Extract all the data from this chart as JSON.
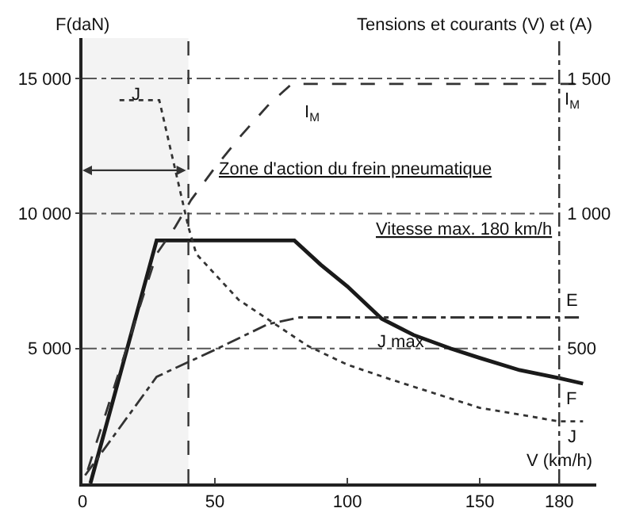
{
  "chart_data": {
    "type": "line",
    "xlabel": "V (km/h)",
    "ylabel": "F(daN)",
    "y2label": "Tensions et courants (V) et (A)",
    "xlim": [
      0,
      194
    ],
    "xticks": [
      0,
      50,
      100,
      150,
      180
    ],
    "ylim": [
      0,
      16500
    ],
    "yticks": [
      {
        "value": 5000,
        "label": "5 000"
      },
      {
        "value": 10000,
        "label": "10 000"
      },
      {
        "value": 15000,
        "label": "15 000"
      }
    ],
    "y2lim": [
      0,
      1650
    ],
    "y2ticks": [
      500,
      {
        "value": 1000,
        "label": "1 000"
      },
      {
        "value": 1500,
        "label": "1 500"
      }
    ],
    "grid": "y",
    "legend": false,
    "marker": "none",
    "series": [
      {
        "name": "F",
        "color": "#1a1a1a",
        "line_style": "solid",
        "x": [
          3,
          28,
          80,
          90,
          100,
          113,
          125,
          139,
          150,
          165,
          180,
          189
        ],
        "values": [
          0,
          9000,
          9000,
          8100,
          7300,
          6100,
          5500,
          5000,
          4650,
          4200,
          3900,
          3700
        ]
      },
      {
        "name": "I$_{M}$",
        "color": "#333333",
        "line_style": "dashed",
        "axis": "y2",
        "x": [
          2,
          15,
          28,
          35,
          41,
          50,
          60,
          70,
          79,
          189
        ],
        "values": [
          50,
          450,
          850,
          950,
          1050,
          1170,
          1290,
          1400,
          1480,
          1480
        ]
      },
      {
        "name": "J",
        "color": "#333333",
        "line_style": "dotted",
        "axis": "y2",
        "x": [
          14,
          29,
          40,
          43,
          59,
          85,
          100,
          115,
          150,
          180,
          189
        ],
        "values": [
          1420,
          1420,
          950,
          850,
          680,
          510,
          440,
          390,
          280,
          230,
          230
        ]
      },
      {
        "name": "E",
        "color": "#333333",
        "line_style": "dashdot",
        "axis": "y2",
        "x": [
          1,
          28,
          40,
          50,
          70,
          82,
          189
        ],
        "values": [
          30,
          395,
          450,
          495,
          590,
          615,
          615
        ]
      }
    ],
    "ref_lines": [
      {
        "axis": "x",
        "value": 40,
        "line_style": "dashed",
        "color": "#333333"
      },
      {
        "axis": "x",
        "value": 180,
        "line_style": "dashdot",
        "color": "#333333",
        "label": "Vitesse max. 180 km/h"
      }
    ],
    "bands": [
      {
        "axis": "x",
        "from": 0,
        "to": 40,
        "label": "Zone d'action du frein pneumatique",
        "color": "#333333"
      }
    ],
    "annotations": [
      "J",
      "I$_{M}$",
      "J max"
    ]
  }
}
